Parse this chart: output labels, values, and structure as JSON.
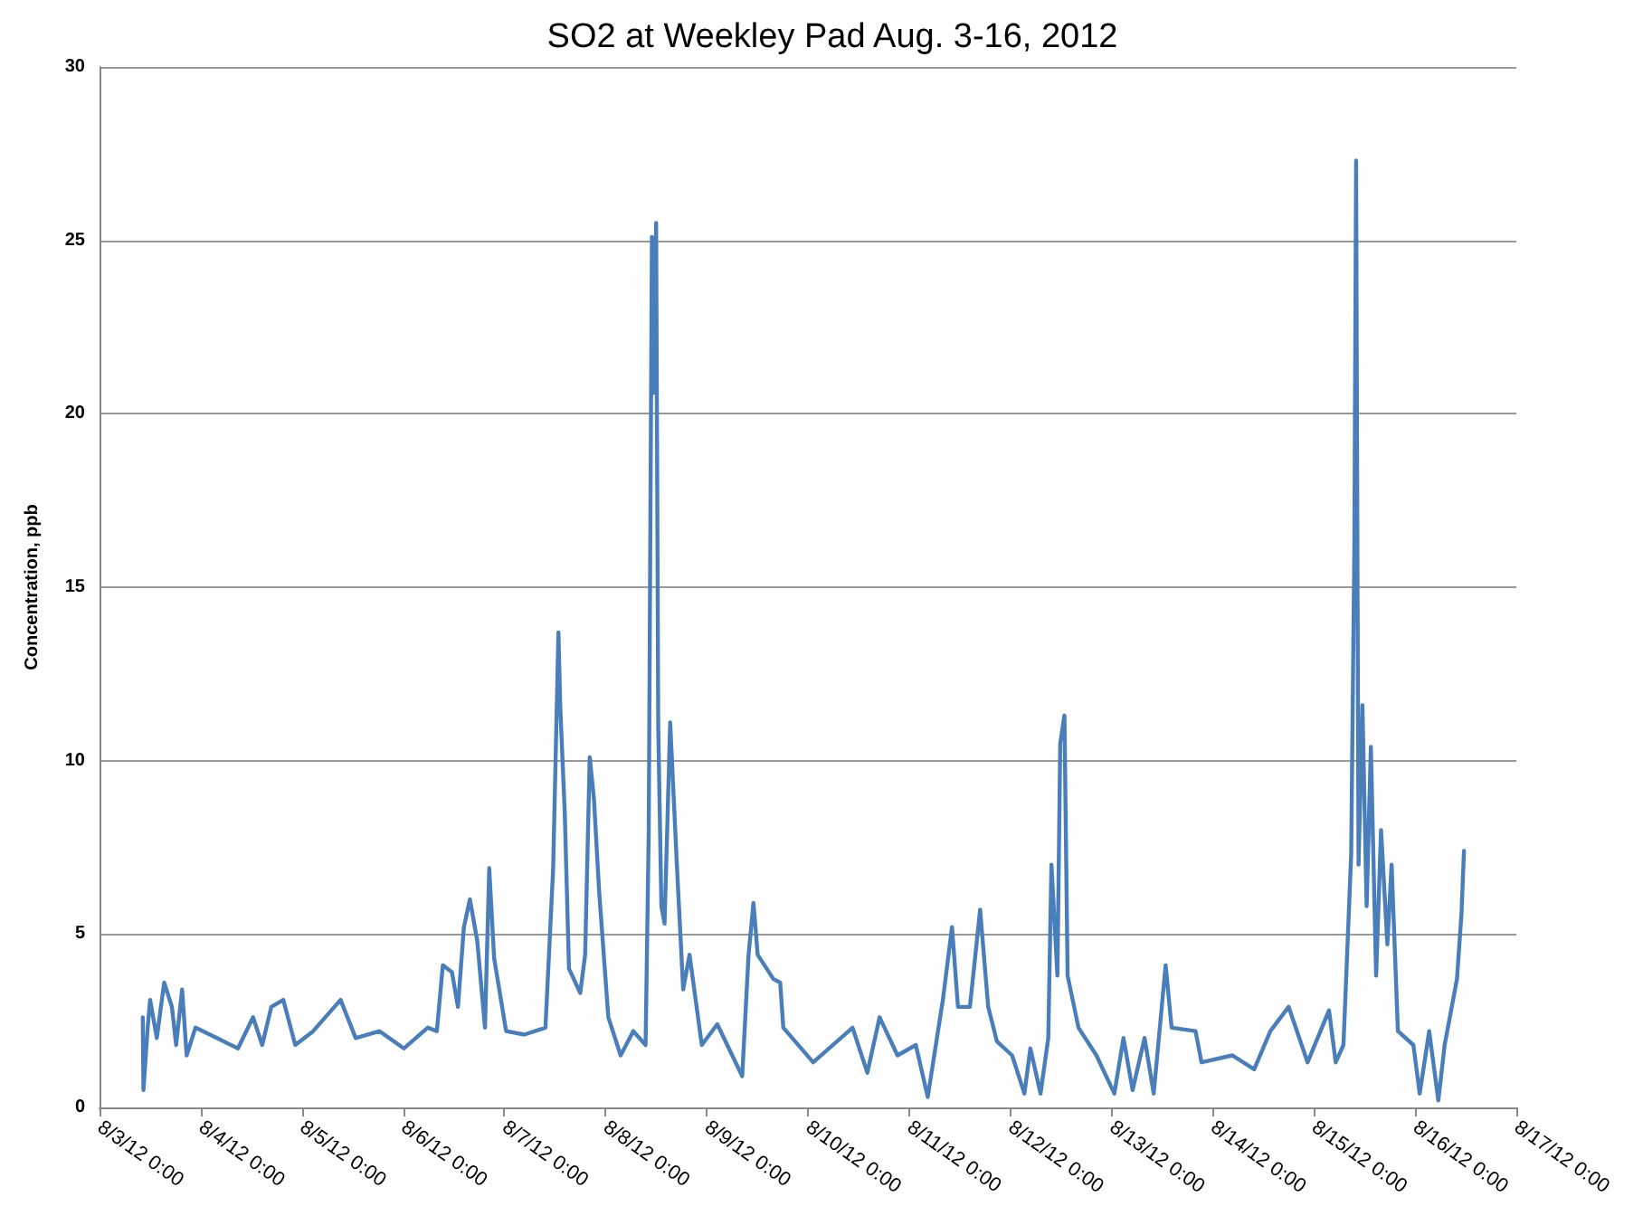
{
  "chart_data": {
    "type": "line",
    "title": "SO2 at Weekley Pad Aug. 3-16, 2012",
    "ylabel": "Concentration, ppb",
    "xlim": [
      "2012-08-03T00:00",
      "2012-08-17T00:00"
    ],
    "xticks": [
      {
        "value": "2012-08-03T00:00",
        "label": "8/3/12 0:00"
      },
      {
        "value": "2012-08-04T00:00",
        "label": "8/4/12 0:00"
      },
      {
        "value": "2012-08-05T00:00",
        "label": "8/5/12 0:00"
      },
      {
        "value": "2012-08-06T00:00",
        "label": "8/6/12 0:00"
      },
      {
        "value": "2012-08-07T00:00",
        "label": "8/7/12 0:00"
      },
      {
        "value": "2012-08-08T00:00",
        "label": "8/8/12 0:00"
      },
      {
        "value": "2012-08-09T00:00",
        "label": "8/9/12 0:00"
      },
      {
        "value": "2012-08-10T00:00",
        "label": "8/10/12 0:00"
      },
      {
        "value": "2012-08-11T00:00",
        "label": "8/11/12 0:00"
      },
      {
        "value": "2012-08-12T00:00",
        "label": "8/12/12 0:00"
      },
      {
        "value": "2012-08-13T00:00",
        "label": "8/13/12 0:00"
      },
      {
        "value": "2012-08-14T00:00",
        "label": "8/14/12 0:00"
      },
      {
        "value": "2012-08-15T00:00",
        "label": "8/15/12 0:00"
      },
      {
        "value": "2012-08-16T00:00",
        "label": "8/16/12 0:00"
      },
      {
        "value": "2012-08-17T00:00",
        "label": "8/17/12 0:00"
      }
    ],
    "ylim": [
      0,
      30
    ],
    "yticks": [
      0,
      5,
      10,
      15,
      20,
      25,
      30
    ],
    "grid": "y",
    "marker": "none",
    "line_style": "solid",
    "series": [
      {
        "color": "#4a7ebb",
        "x": [
          "2012-08-03T10:15",
          "2012-08-03T10:25",
          "2012-08-03T11:25",
          "2012-08-03T12:00",
          "2012-08-03T13:35",
          "2012-08-03T15:20",
          "2012-08-03T17:10",
          "2012-08-03T18:10",
          "2012-08-03T19:35",
          "2012-08-03T20:40",
          "2012-08-03T22:45",
          "2012-08-04T03:50",
          "2012-08-04T08:50",
          "2012-08-04T12:25",
          "2012-08-04T14:35",
          "2012-08-04T16:45",
          "2012-08-04T19:35",
          "2012-08-04T22:25",
          "2012-08-05T02:40",
          "2012-08-05T09:10",
          "2012-08-05T12:45",
          "2012-08-05T18:25",
          "2012-08-06T00:10",
          "2012-08-06T05:50",
          "2012-08-06T08:00",
          "2012-08-06T09:25",
          "2012-08-06T11:35",
          "2012-08-06T13:00",
          "2012-08-06T14:25",
          "2012-08-06T15:50",
          "2012-08-06T17:35",
          "2012-08-06T19:25",
          "2012-08-06T20:25",
          "2012-08-06T21:35",
          "2012-08-07T00:25",
          "2012-08-07T04:45",
          "2012-08-07T09:45",
          "2012-08-07T11:35",
          "2012-08-07T12:50",
          "2012-08-07T13:15",
          "2012-08-07T14:20",
          "2012-08-07T15:20",
          "2012-08-07T18:00",
          "2012-08-07T19:10",
          "2012-08-07T20:15",
          "2012-08-07T21:15",
          "2012-08-07T22:30",
          "2012-08-08T00:40",
          "2012-08-08T03:35",
          "2012-08-08T06:35",
          "2012-08-08T09:30",
          "2012-08-08T10:15",
          "2012-08-08T11:00",
          "2012-08-08T11:25",
          "2012-08-08T12:00",
          "2012-08-08T12:30",
          "2012-08-08T13:15",
          "2012-08-08T14:00",
          "2012-08-08T15:20",
          "2012-08-08T16:55",
          "2012-08-08T18:25",
          "2012-08-08T19:55",
          "2012-08-08T22:50",
          "2012-08-09T02:30",
          "2012-08-09T08:25",
          "2012-08-09T09:55",
          "2012-08-09T11:05",
          "2012-08-09T12:05",
          "2012-08-09T15:50",
          "2012-08-09T17:25",
          "2012-08-09T18:10",
          "2012-08-10T01:15",
          "2012-08-10T10:35",
          "2012-08-10T14:05",
          "2012-08-10T17:00",
          "2012-08-10T21:15",
          "2012-08-11T01:35",
          "2012-08-11T04:25",
          "2012-08-11T08:00",
          "2012-08-11T10:10",
          "2012-08-11T11:35",
          "2012-08-11T14:25",
          "2012-08-11T16:50",
          "2012-08-11T18:45",
          "2012-08-11T20:50",
          "2012-08-12T00:25",
          "2012-08-12T03:20",
          "2012-08-12T04:45",
          "2012-08-12T07:10",
          "2012-08-12T09:00",
          "2012-08-12T09:45",
          "2012-08-12T11:10",
          "2012-08-12T11:50",
          "2012-08-12T12:50",
          "2012-08-12T13:35",
          "2012-08-12T16:10",
          "2012-08-12T20:25",
          "2012-08-13T00:40",
          "2012-08-13T02:50",
          "2012-08-13T05:00",
          "2012-08-13T07:50",
          "2012-08-13T10:00",
          "2012-08-13T12:50",
          "2012-08-13T14:15",
          "2012-08-13T19:55",
          "2012-08-13T21:20",
          "2012-08-14T04:40",
          "2012-08-14T09:50",
          "2012-08-14T13:40",
          "2012-08-14T18:00",
          "2012-08-14T22:30",
          "2012-08-15T03:35",
          "2012-08-15T05:10",
          "2012-08-15T07:00",
          "2012-08-15T08:50",
          "2012-08-15T09:35",
          "2012-08-15T10:00",
          "2012-08-15T10:20",
          "2012-08-15T10:35",
          "2012-08-15T11:30",
          "2012-08-15T12:30",
          "2012-08-15T13:30",
          "2012-08-15T14:45",
          "2012-08-15T15:55",
          "2012-08-15T17:25",
          "2012-08-15T18:25",
          "2012-08-15T19:55",
          "2012-08-15T23:35",
          "2012-08-16T01:05",
          "2012-08-16T03:20",
          "2012-08-16T05:30",
          "2012-08-16T07:00",
          "2012-08-16T09:55",
          "2012-08-16T11:00",
          "2012-08-16T11:35"
        ],
        "values": [
          2.6,
          0.5,
          2.3,
          3.1,
          2.0,
          3.6,
          2.9,
          1.8,
          3.4,
          1.5,
          2.3,
          2.0,
          1.7,
          2.6,
          1.8,
          2.9,
          3.1,
          1.8,
          2.2,
          3.1,
          2.0,
          2.2,
          1.7,
          2.3,
          2.2,
          4.1,
          3.9,
          2.9,
          5.2,
          6.0,
          4.8,
          2.3,
          6.9,
          4.3,
          2.2,
          2.1,
          2.3,
          6.9,
          13.7,
          11.6,
          8.5,
          4.0,
          3.3,
          4.4,
          10.1,
          8.9,
          6.2,
          2.6,
          1.5,
          2.2,
          1.8,
          8.0,
          25.1,
          20.6,
          25.5,
          11.0,
          5.8,
          5.3,
          11.1,
          7.0,
          3.4,
          4.4,
          1.8,
          2.4,
          0.9,
          4.4,
          5.9,
          4.4,
          3.7,
          3.6,
          2.3,
          1.3,
          2.3,
          1.0,
          2.6,
          1.5,
          1.8,
          0.3,
          3.1,
          5.2,
          2.9,
          2.9,
          5.7,
          2.9,
          1.9,
          1.5,
          0.4,
          1.7,
          0.4,
          2.0,
          7.0,
          3.8,
          10.5,
          11.3,
          3.8,
          2.3,
          1.5,
          0.4,
          2.0,
          0.5,
          2.0,
          0.4,
          4.1,
          2.3,
          2.2,
          1.3,
          1.5,
          1.1,
          2.2,
          2.9,
          1.3,
          2.8,
          1.3,
          1.8,
          7.3,
          16.1,
          27.3,
          15.2,
          7.0,
          11.6,
          5.8,
          10.4,
          3.8,
          8.0,
          4.7,
          7.0,
          2.2,
          1.8,
          0.4,
          2.2,
          0.2,
          1.8,
          3.7,
          5.6,
          7.4
        ]
      }
    ]
  }
}
